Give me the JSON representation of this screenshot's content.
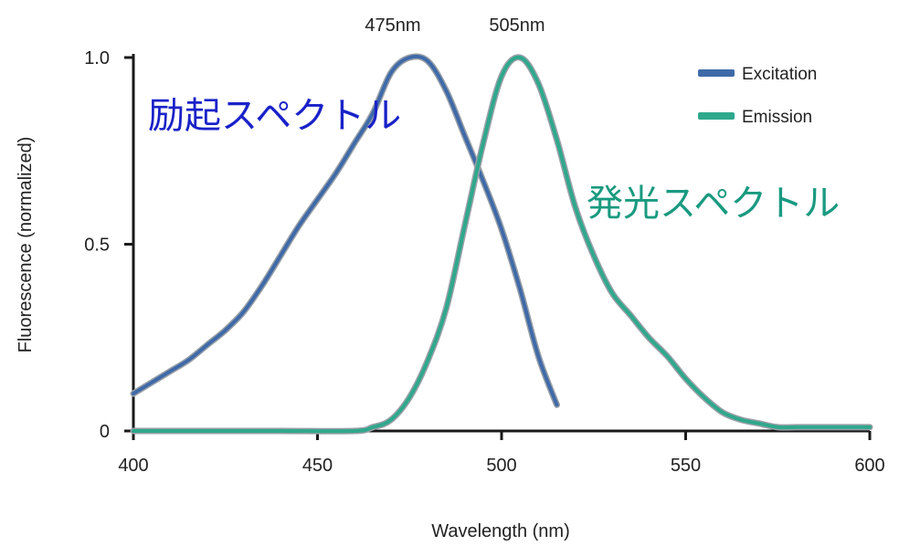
{
  "chart_data": {
    "type": "line",
    "xlabel": "Wavelength (nm)",
    "ylabel": "Fluorescence (normalized)",
    "xlim": [
      400,
      600
    ],
    "ylim": [
      0,
      1.0
    ],
    "x_ticks": [
      {
        "value": 400,
        "label": "400"
      },
      {
        "value": 450,
        "label": "450"
      },
      {
        "value": 500,
        "label": "500"
      },
      {
        "value": 550,
        "label": "550"
      },
      {
        "value": 600,
        "label": "600"
      }
    ],
    "y_ticks": [
      {
        "value": 0,
        "label": "0"
      },
      {
        "value": 0.5,
        "label": "0.5"
      },
      {
        "value": 1.0,
        "label": "1.0"
      }
    ],
    "grid": false,
    "legend_position": "top-right",
    "series": [
      {
        "name": "Excitation",
        "color": "#3f6aa8",
        "x": [
          400,
          405,
          410,
          415,
          420,
          425,
          430,
          435,
          440,
          445,
          450,
          455,
          460,
          465,
          470,
          475,
          480,
          485,
          490,
          495,
          500,
          505,
          510,
          515
        ],
        "y": [
          0.1,
          0.13,
          0.16,
          0.19,
          0.23,
          0.27,
          0.32,
          0.39,
          0.47,
          0.55,
          0.62,
          0.69,
          0.77,
          0.85,
          0.96,
          1.0,
          0.99,
          0.91,
          0.79,
          0.67,
          0.54,
          0.38,
          0.2,
          0.07
        ]
      },
      {
        "name": "Emission",
        "color": "#2fa88c",
        "x": [
          400,
          420,
          440,
          460,
          465,
          470,
          475,
          480,
          485,
          490,
          495,
          500,
          505,
          510,
          515,
          520,
          525,
          530,
          535,
          540,
          545,
          550,
          555,
          560,
          565,
          570,
          575,
          580,
          590,
          600
        ],
        "y": [
          0.0,
          0.0,
          0.0,
          0.0,
          0.01,
          0.03,
          0.09,
          0.19,
          0.33,
          0.55,
          0.77,
          0.95,
          1.0,
          0.93,
          0.78,
          0.6,
          0.47,
          0.37,
          0.31,
          0.25,
          0.2,
          0.14,
          0.09,
          0.05,
          0.03,
          0.02,
          0.01,
          0.01,
          0.01,
          0.01
        ]
      }
    ],
    "peak_labels": [
      {
        "x": 475,
        "text": "475nm"
      },
      {
        "x": 505,
        "text": "505nm"
      }
    ],
    "annotations": [
      {
        "text": "励起スペクトル",
        "color": "#1a22c8",
        "series": "Excitation"
      },
      {
        "text": "発光スペクトル",
        "color": "#1a9a80",
        "series": "Emission"
      }
    ]
  }
}
